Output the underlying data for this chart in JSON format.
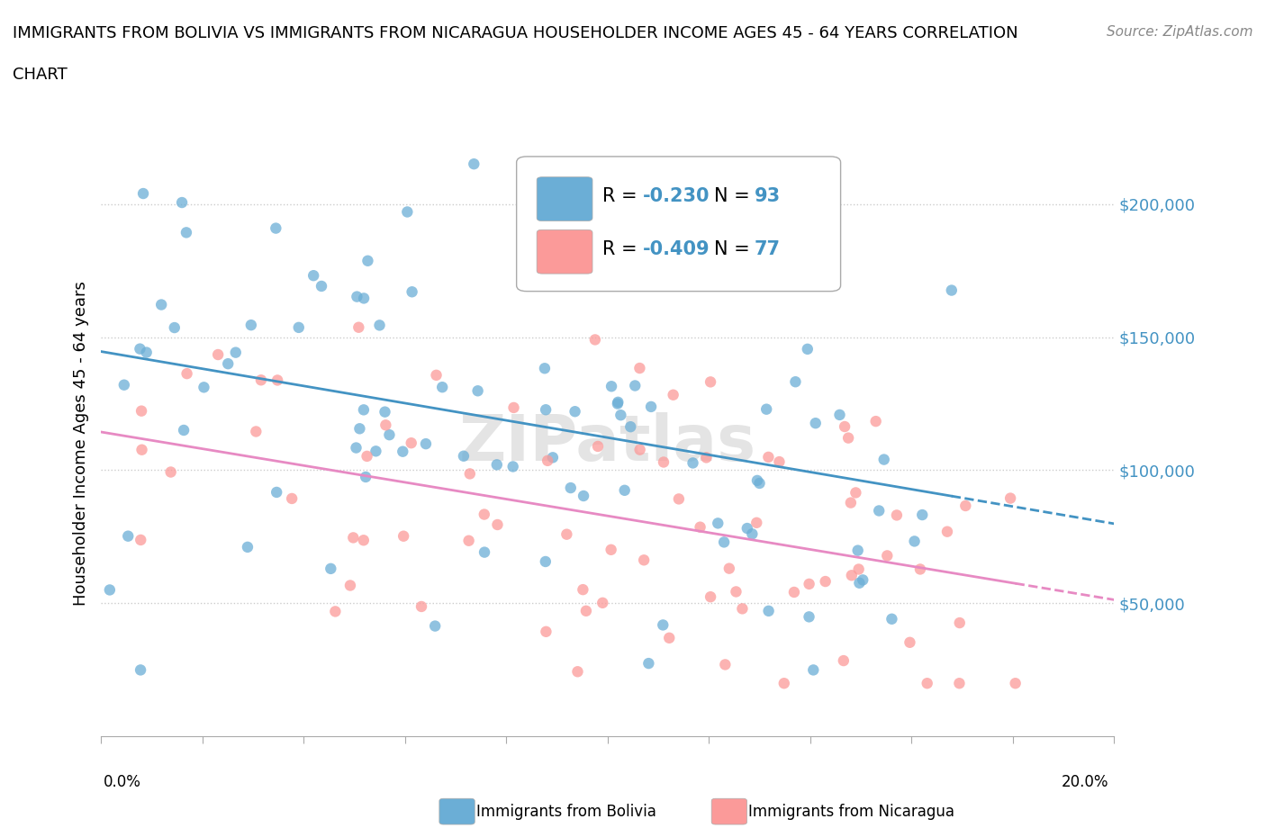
{
  "title_line1": "IMMIGRANTS FROM BOLIVIA VS IMMIGRANTS FROM NICARAGUA HOUSEHOLDER INCOME AGES 45 - 64 YEARS CORRELATION",
  "title_line2": "CHART",
  "source": "Source: ZipAtlas.com",
  "ylabel": "Householder Income Ages 45 - 64 years",
  "xlim": [
    0.0,
    0.2
  ],
  "ylim": [
    0,
    220000
  ],
  "yticks": [
    50000,
    100000,
    150000,
    200000
  ],
  "ytick_labels": [
    "$50,000",
    "$100,000",
    "$150,000",
    "$200,000"
  ],
  "bolivia_color": "#6baed6",
  "nicaragua_color": "#fb9a99",
  "bolivia_line_color": "#4393c3",
  "nicaragua_line_color": "#e78ac3",
  "bolivia_R": -0.23,
  "bolivia_N": 93,
  "nicaragua_R": -0.409,
  "nicaragua_N": 77,
  "watermark": "ZIPatlas",
  "label_color": "#4393c3",
  "bolivia_legend": "Immigrants from Bolivia",
  "nicaragua_legend": "Immigrants from Nicaragua"
}
